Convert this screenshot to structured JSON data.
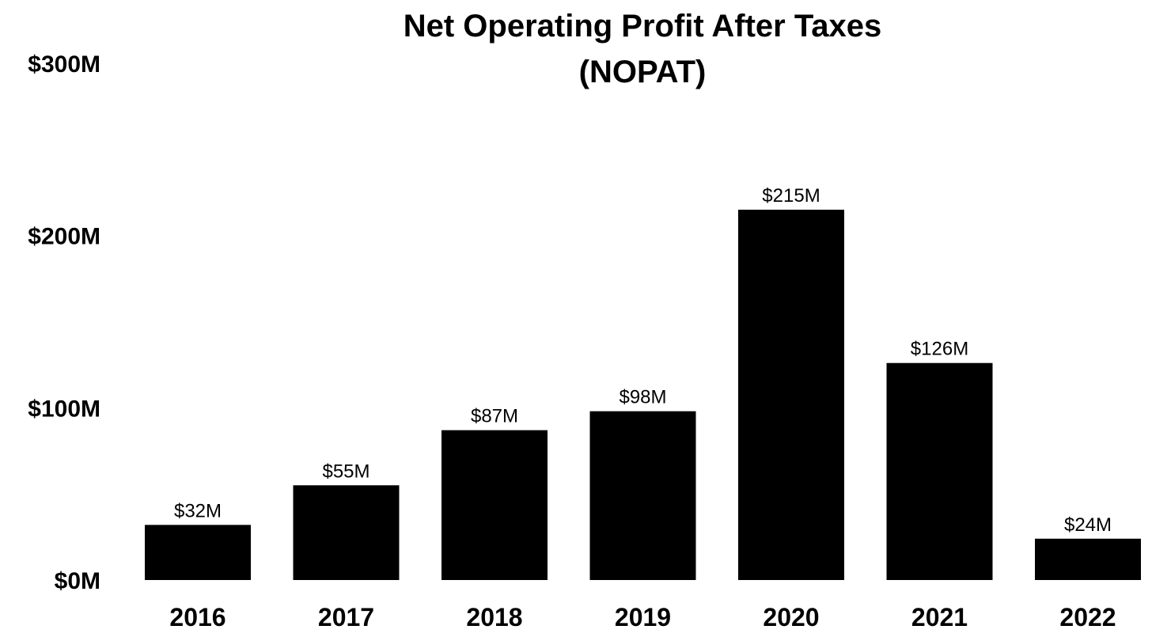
{
  "chart_data": {
    "type": "bar",
    "title": [
      "Net Operating Profit After Taxes",
      "(NOPAT)"
    ],
    "categories": [
      "2016",
      "2017",
      "2018",
      "2019",
      "2020",
      "2021",
      "2022"
    ],
    "values": [
      32,
      55,
      87,
      98,
      215,
      126,
      24
    ],
    "data_labels": [
      "$32M",
      "$55M",
      "$87M",
      "$98M",
      "$215M",
      "$126M",
      "$24M"
    ],
    "yticks": [
      0,
      100,
      200,
      300
    ],
    "ytick_labels": [
      "$0M",
      "$100M",
      "$200M",
      "$300M"
    ],
    "ylim": [
      0,
      300
    ],
    "grid": false,
    "legend": false,
    "bar_color": "#000000"
  }
}
